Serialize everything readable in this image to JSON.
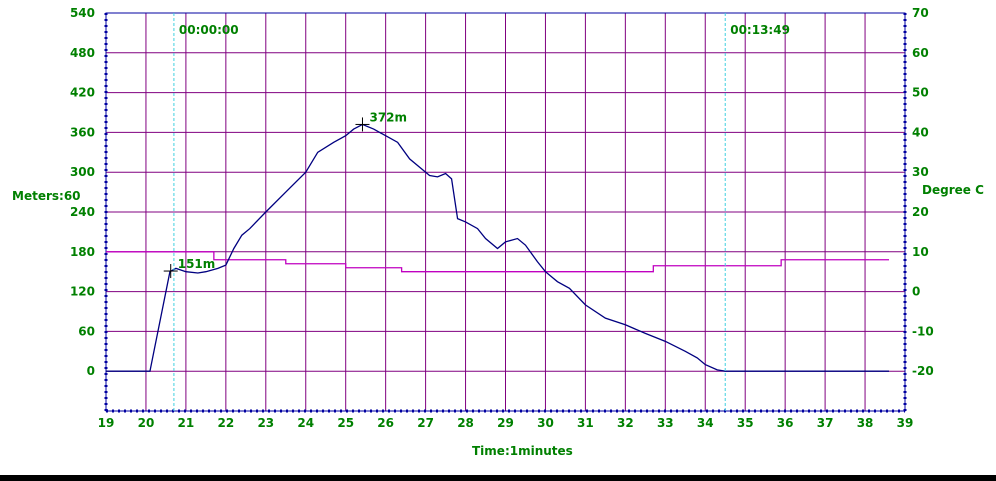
{
  "chart_data": {
    "type": "line",
    "xlabel": "Time:1minutes",
    "ylabel": "Meters:60",
    "y2label": "Degree C",
    "xlim": [
      19,
      39
    ],
    "ylim": [
      -60,
      540
    ],
    "y2lim": [
      -30,
      70
    ],
    "x_ticks": [
      "19",
      "20",
      "21",
      "22",
      "23",
      "24",
      "25",
      "26",
      "27",
      "28",
      "29",
      "30",
      "31",
      "32",
      "33",
      "34",
      "35",
      "36",
      "37",
      "38",
      "39"
    ],
    "y_ticks": [
      "0",
      "60",
      "120",
      "180",
      "240",
      "300",
      "360",
      "420",
      "480",
      "540"
    ],
    "y2_ticks": [
      "-20",
      "-10",
      "0",
      "10",
      "20",
      "30",
      "40",
      "50",
      "60",
      "70"
    ],
    "grid": true,
    "colors": {
      "axis": "#0000a0",
      "grid": "#800080",
      "text": "#008000",
      "depth": "#000080",
      "temp": "#c000c0",
      "marker": "#40d0e0"
    },
    "markers": [
      {
        "x": 20.7,
        "label": "00:00:00"
      },
      {
        "x": 34.5,
        "label": "00:13:49"
      }
    ],
    "annotations": [
      {
        "x": 20.62,
        "y": 151,
        "label": "151m"
      },
      {
        "x": 25.42,
        "y": 372,
        "label": "372m"
      }
    ],
    "series": [
      {
        "axis": "left",
        "x": [
          19.0,
          20.1,
          20.2,
          20.4,
          20.6,
          20.75,
          21.0,
          21.3,
          21.5,
          21.8,
          22.0,
          22.2,
          22.4,
          22.6,
          23.0,
          23.5,
          24.0,
          24.3,
          24.7,
          25.0,
          25.2,
          25.42,
          25.7,
          26.0,
          26.3,
          26.6,
          26.9,
          27.1,
          27.3,
          27.5,
          27.65,
          27.8,
          28.0,
          28.3,
          28.5,
          28.8,
          29.0,
          29.3,
          29.5,
          29.8,
          30.0,
          30.3,
          30.6,
          31.0,
          31.5,
          32.0,
          32.5,
          33.0,
          33.5,
          33.8,
          34.0,
          34.3,
          34.5,
          34.8,
          35.0,
          36.0,
          37.0,
          38.6
        ],
        "values": [
          0,
          0,
          30,
          90,
          150,
          155,
          150,
          148,
          150,
          155,
          160,
          185,
          205,
          215,
          240,
          270,
          300,
          330,
          345,
          355,
          365,
          372,
          365,
          355,
          345,
          320,
          305,
          295,
          293,
          298,
          290,
          230,
          225,
          215,
          200,
          185,
          195,
          200,
          190,
          165,
          150,
          135,
          125,
          100,
          80,
          70,
          57,
          45,
          30,
          20,
          10,
          2,
          0,
          0,
          0,
          0,
          0,
          0
        ]
      },
      {
        "axis": "right",
        "x": [
          19.0,
          21.7,
          21.7,
          23.5,
          23.5,
          25.0,
          25.0,
          26.4,
          26.4,
          32.7,
          32.7,
          35.9,
          35.9,
          38.6
        ],
        "values": [
          10,
          10,
          8,
          8,
          7,
          7,
          6,
          6,
          5,
          5,
          6.5,
          6.5,
          8,
          8
        ]
      }
    ]
  }
}
